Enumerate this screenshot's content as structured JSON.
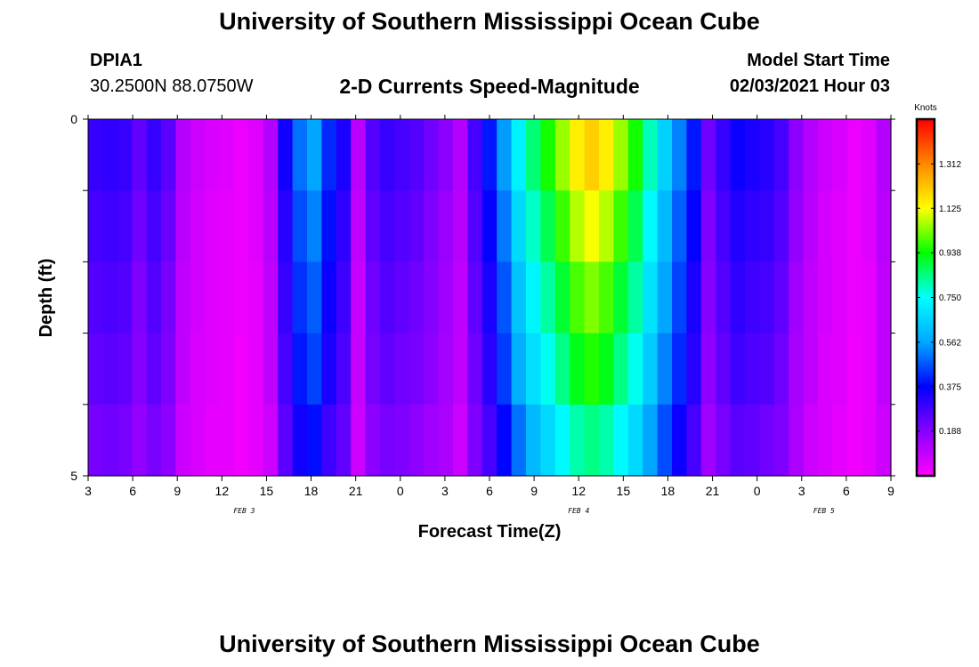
{
  "header": {
    "title": "University of Southern Mississippi Ocean Cube",
    "station_id": "DPIA1",
    "station_coords": "30.2500N 88.0750W",
    "subtitle": "2-D Currents Speed-Magnitude",
    "model_start_label": "Model Start Time",
    "model_start_value": "02/03/2021 Hour 03"
  },
  "footer": {
    "title": "University of Southern Mississippi Ocean Cube"
  },
  "colors": {
    "colormap": [
      "#ff00ff",
      "#8800ff",
      "#0000ff",
      "#00a8ff",
      "#00ffff",
      "#00ff00",
      "#ffff00",
      "#ff8800",
      "#ff0000"
    ],
    "frame": "#000000"
  },
  "chart_data": {
    "type": "heatmap",
    "title": "2-D Currents Speed-Magnitude",
    "xlabel": "Forecast Time(Z)",
    "ylabel": "Depth (ft)",
    "x_tick_labels": [
      "3",
      "6",
      "9",
      "12",
      "15",
      "18",
      "21",
      "0",
      "3",
      "6",
      "9",
      "12",
      "15",
      "18",
      "21",
      "0",
      "3",
      "6",
      "9"
    ],
    "day_labels": [
      {
        "text": "FEB 3",
        "tick_index": 3.5
      },
      {
        "text": "FEB 4",
        "tick_index": 11
      },
      {
        "text": "FEB 5",
        "tick_index": 16.5
      }
    ],
    "y_tick_labels": [
      "0",
      "5"
    ],
    "ylim": [
      0,
      5
    ],
    "depth_rows": 5,
    "colorbar": {
      "unit": "Knots",
      "range": [
        0.0,
        1.5
      ],
      "tick_labels": [
        "0.188",
        "0.375",
        "0.562",
        "0.750",
        "0.938",
        "1.125",
        "1.312"
      ],
      "tick_values": [
        0.188,
        0.375,
        0.562,
        0.75,
        0.938,
        1.125,
        1.312
      ]
    },
    "hours": [
      3,
      4,
      5,
      6,
      7,
      8,
      9,
      10,
      11,
      12,
      13,
      14,
      15,
      16,
      17,
      18,
      19,
      20,
      21,
      22,
      23,
      24,
      25,
      26,
      27,
      28,
      29,
      30,
      31,
      32,
      33,
      34,
      35,
      36,
      37,
      38,
      39,
      40,
      41,
      42,
      43,
      44,
      45,
      46,
      47,
      48,
      49,
      50,
      51,
      52,
      53,
      54,
      55,
      56,
      57
    ],
    "surface_speed": [
      0.3,
      0.31,
      0.3,
      0.24,
      0.3,
      0.25,
      0.12,
      0.08,
      0.06,
      0.05,
      0.03,
      0.05,
      0.12,
      0.35,
      0.5,
      0.56,
      0.42,
      0.34,
      0.11,
      0.26,
      0.3,
      0.28,
      0.26,
      0.22,
      0.18,
      0.12,
      0.28,
      0.4,
      0.55,
      0.72,
      0.85,
      0.95,
      1.05,
      1.15,
      1.2,
      1.15,
      1.05,
      0.95,
      0.8,
      0.65,
      0.52,
      0.4,
      0.22,
      0.3,
      0.36,
      0.34,
      0.32,
      0.28,
      0.18,
      0.12,
      0.08,
      0.06,
      0.03,
      0.05,
      0.12
    ],
    "depth_profile_note": "",
    "speed": [
      [
        0.3,
        0.31,
        0.3,
        0.24,
        0.3,
        0.25,
        0.12,
        0.08,
        0.06,
        0.05,
        0.03,
        0.05,
        0.12,
        0.35,
        0.5,
        0.56,
        0.42,
        0.34,
        0.11,
        0.26,
        0.3,
        0.28,
        0.26,
        0.22,
        0.18,
        0.12,
        0.28,
        0.4,
        0.55,
        0.72,
        0.85,
        0.95,
        1.05,
        1.15,
        1.2,
        1.15,
        1.05,
        0.95,
        0.8,
        0.65,
        0.52,
        0.4,
        0.22,
        0.3,
        0.36,
        0.34,
        0.32,
        0.28,
        0.18,
        0.12,
        0.08,
        0.06,
        0.03,
        0.05,
        0.12
      ],
      [
        0.28,
        0.29,
        0.28,
        0.22,
        0.28,
        0.23,
        0.11,
        0.07,
        0.05,
        0.04,
        0.03,
        0.05,
        0.11,
        0.32,
        0.46,
        0.52,
        0.39,
        0.31,
        0.1,
        0.24,
        0.28,
        0.26,
        0.24,
        0.2,
        0.16,
        0.11,
        0.26,
        0.37,
        0.51,
        0.67,
        0.79,
        0.88,
        0.98,
        1.07,
        1.12,
        1.07,
        0.98,
        0.88,
        0.74,
        0.6,
        0.48,
        0.37,
        0.2,
        0.28,
        0.33,
        0.31,
        0.3,
        0.26,
        0.17,
        0.11,
        0.07,
        0.05,
        0.03,
        0.05,
        0.11
      ],
      [
        0.26,
        0.27,
        0.26,
        0.2,
        0.26,
        0.21,
        0.1,
        0.07,
        0.05,
        0.04,
        0.03,
        0.04,
        0.1,
        0.3,
        0.43,
        0.48,
        0.36,
        0.29,
        0.09,
        0.22,
        0.26,
        0.24,
        0.22,
        0.19,
        0.15,
        0.1,
        0.24,
        0.34,
        0.47,
        0.62,
        0.73,
        0.82,
        0.9,
        0.99,
        1.03,
        0.99,
        0.9,
        0.82,
        0.69,
        0.56,
        0.45,
        0.34,
        0.19,
        0.26,
        0.31,
        0.29,
        0.28,
        0.24,
        0.15,
        0.1,
        0.07,
        0.05,
        0.03,
        0.04,
        0.1
      ],
      [
        0.24,
        0.25,
        0.24,
        0.19,
        0.24,
        0.2,
        0.1,
        0.06,
        0.05,
        0.04,
        0.02,
        0.04,
        0.1,
        0.28,
        0.4,
        0.45,
        0.34,
        0.27,
        0.09,
        0.21,
        0.24,
        0.22,
        0.21,
        0.18,
        0.14,
        0.1,
        0.22,
        0.32,
        0.44,
        0.58,
        0.68,
        0.76,
        0.84,
        0.92,
        0.96,
        0.92,
        0.84,
        0.76,
        0.64,
        0.52,
        0.42,
        0.32,
        0.18,
        0.24,
        0.29,
        0.27,
        0.26,
        0.22,
        0.14,
        0.1,
        0.06,
        0.05,
        0.02,
        0.04,
        0.1
      ],
      [
        0.21,
        0.22,
        0.21,
        0.17,
        0.21,
        0.18,
        0.08,
        0.06,
        0.04,
        0.04,
        0.02,
        0.04,
        0.08,
        0.25,
        0.35,
        0.39,
        0.29,
        0.24,
        0.08,
        0.18,
        0.21,
        0.2,
        0.18,
        0.15,
        0.13,
        0.08,
        0.2,
        0.28,
        0.38,
        0.5,
        0.6,
        0.67,
        0.74,
        0.81,
        0.84,
        0.81,
        0.74,
        0.67,
        0.56,
        0.46,
        0.36,
        0.28,
        0.15,
        0.21,
        0.25,
        0.24,
        0.22,
        0.2,
        0.13,
        0.08,
        0.06,
        0.04,
        0.02,
        0.04,
        0.08
      ]
    ]
  }
}
